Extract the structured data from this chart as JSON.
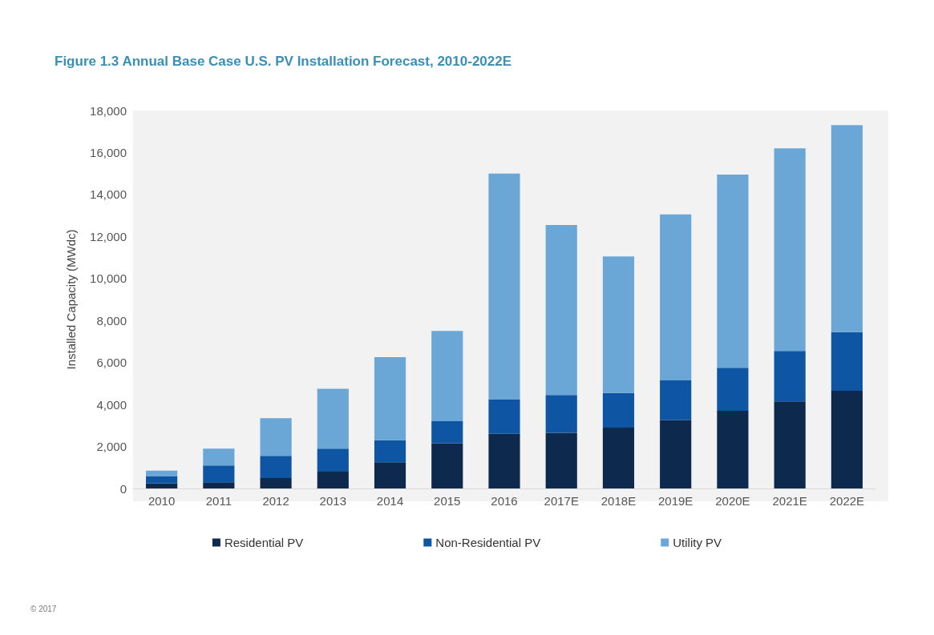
{
  "chart_data": {
    "type": "bar",
    "title": "Figure 1.3 Annual Base Case U.S. PV Installation Forecast, 2010-2022E",
    "ylabel": "Installed Capacity (MWdc)",
    "categories": [
      "2010",
      "2011",
      "2012",
      "2013",
      "2014",
      "2015",
      "2016",
      "2017E",
      "2018E",
      "2019E",
      "2020E",
      "2021E",
      "2022E"
    ],
    "stacked": true,
    "series": [
      {
        "name": "Residential PV",
        "color": "#0d2a4e",
        "values": [
          250,
          300,
          500,
          800,
          1250,
          2150,
          2600,
          2650,
          2900,
          3250,
          3700,
          4150,
          4650
        ]
      },
      {
        "name": "Non-Residential PV",
        "color": "#0e56a3",
        "values": [
          340,
          800,
          1050,
          1100,
          1050,
          1050,
          1650,
          1800,
          1650,
          1900,
          2050,
          2400,
          2800
        ]
      },
      {
        "name": "Utility PV",
        "color": "#6aa6d6",
        "values": [
          260,
          800,
          1800,
          2850,
          3950,
          4300,
          10750,
          8100,
          6500,
          7900,
          9200,
          9650,
          9850
        ]
      }
    ],
    "ylim": [
      0,
      18000
    ],
    "yticks": [
      0,
      {
        "value": 2000,
        "label": "2,000"
      },
      {
        "value": 4000,
        "label": "4,000"
      },
      {
        "value": 6000,
        "label": "6,000"
      },
      {
        "value": 8000,
        "label": "8,000"
      },
      {
        "value": 10000,
        "label": "10,000"
      },
      {
        "value": 12000,
        "label": "12,000"
      },
      {
        "value": 14000,
        "label": "14,000"
      },
      {
        "value": 16000,
        "label": "16,000"
      },
      {
        "value": 18000,
        "label": "18,000"
      }
    ],
    "grid": false,
    "legend": "bottom",
    "annotations": [
      "© 2017"
    ]
  }
}
